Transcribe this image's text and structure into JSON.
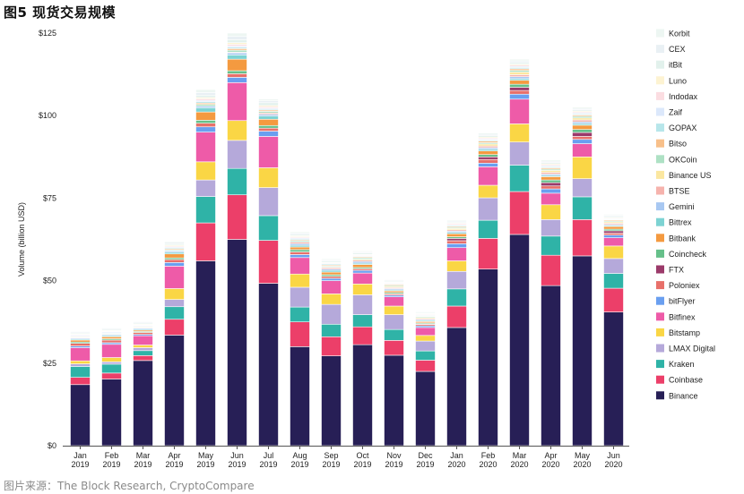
{
  "figure": {
    "title": "图5 现货交易规模",
    "source": "图片来源：The Block Research, CryptoCompare"
  },
  "chart_data": {
    "type": "bar",
    "stacked": true,
    "ylabel": "Volume (billion USD)",
    "xlabel": "",
    "ylim": [
      0,
      125
    ],
    "yticks": [
      "$0",
      "$25",
      "$50",
      "$75",
      "$100",
      "$125"
    ],
    "grid": false,
    "legend_position": "right",
    "categories": [
      [
        "Jan",
        "2019"
      ],
      [
        "Feb",
        "2019"
      ],
      [
        "Mar",
        "2019"
      ],
      [
        "Apr",
        "2019"
      ],
      [
        "May",
        "2019"
      ],
      [
        "Jun",
        "2019"
      ],
      [
        "Jul",
        "2019"
      ],
      [
        "Aug",
        "2019"
      ],
      [
        "Sep",
        "2019"
      ],
      [
        "Oct",
        "2019"
      ],
      [
        "Nov",
        "2019"
      ],
      [
        "Dec",
        "2019"
      ],
      [
        "Jan",
        "2020"
      ],
      [
        "Feb",
        "2020"
      ],
      [
        "Mar",
        "2020"
      ],
      [
        "Apr",
        "2020"
      ],
      [
        "May",
        "2020"
      ],
      [
        "Jun",
        "2020"
      ]
    ],
    "series": [
      {
        "name": "Binance",
        "color": "#271f56",
        "values": [
          18.5,
          20.2,
          25.8,
          33.5,
          56.0,
          62.5,
          49.2,
          30.0,
          27.2,
          30.6,
          27.4,
          22.5,
          35.8,
          53.5,
          64.0,
          48.5,
          57.5,
          40.5
        ]
      },
      {
        "name": "Coinbase",
        "color": "#ec3f69",
        "values": [
          2.2,
          1.8,
          1.5,
          4.8,
          11.5,
          13.5,
          13.0,
          7.5,
          5.8,
          5.4,
          4.5,
          3.4,
          6.5,
          9.3,
          13.0,
          9.2,
          11.0,
          7.2
        ]
      },
      {
        "name": "Kraken",
        "color": "#2fb3a7",
        "values": [
          3.3,
          2.7,
          1.5,
          3.8,
          8.0,
          8.0,
          7.5,
          4.5,
          3.8,
          3.7,
          3.3,
          2.8,
          5.2,
          5.5,
          8.0,
          5.8,
          6.9,
          4.5
        ]
      },
      {
        "name": "LMAX Digital",
        "color": "#b5a9da",
        "values": [
          0.8,
          0.7,
          0.9,
          2.2,
          5.0,
          8.5,
          8.5,
          6.0,
          6.0,
          6.0,
          4.5,
          3.0,
          5.3,
          6.8,
          7.0,
          5.0,
          5.5,
          4.5
        ]
      },
      {
        "name": "Bitstamp",
        "color": "#fad645",
        "values": [
          0.9,
          1.3,
          0.8,
          3.3,
          5.5,
          6.0,
          6.0,
          4.0,
          3.2,
          3.3,
          2.6,
          1.7,
          3.2,
          3.8,
          5.5,
          4.5,
          6.6,
          3.8
        ]
      },
      {
        "name": "Bitfinex",
        "color": "#ee5ba8",
        "values": [
          4.0,
          4.0,
          2.8,
          6.8,
          9.0,
          11.5,
          9.5,
          5.0,
          4.0,
          3.3,
          2.8,
          2.4,
          4.0,
          5.6,
          7.5,
          3.5,
          4.0,
          2.5
        ]
      },
      {
        "name": "bitFlyer",
        "color": "#6a9ff0",
        "values": [
          0.5,
          0.5,
          0.4,
          1.1,
          1.6,
          1.6,
          1.6,
          0.9,
          0.7,
          0.8,
          0.5,
          0.5,
          1.2,
          1.1,
          1.5,
          1.3,
          1.3,
          0.8
        ]
      },
      {
        "name": "Poloniex",
        "color": "#e8706a",
        "values": [
          0.8,
          0.8,
          0.6,
          0.9,
          1.1,
          1.1,
          0.9,
          0.8,
          0.6,
          0.5,
          0.4,
          0.4,
          0.9,
          1.1,
          1.1,
          0.9,
          0.9,
          0.6
        ]
      },
      {
        "name": "FTX",
        "color": "#9b3a6a",
        "values": [
          0,
          0,
          0,
          0,
          0,
          0,
          0,
          0,
          0,
          0,
          0,
          0.2,
          0.7,
          0.8,
          1.0,
          1.0,
          1.2,
          0.7
        ]
      },
      {
        "name": "Coincheck",
        "color": "#66c08a",
        "values": [
          0.4,
          0.4,
          0.3,
          0.5,
          0.9,
          0.9,
          0.8,
          0.7,
          0.5,
          0.4,
          0.4,
          0.3,
          0.5,
          0.7,
          0.9,
          0.8,
          0.9,
          0.5
        ]
      },
      {
        "name": "Bitbank",
        "color": "#f49a40",
        "values": [
          0.6,
          0.6,
          0.4,
          1.2,
          2.5,
          3.5,
          1.9,
          0.8,
          0.8,
          0.9,
          0.5,
          0.4,
          0.9,
          1.1,
          1.2,
          1.0,
          1.3,
          0.8
        ]
      },
      {
        "name": "Bittrex",
        "color": "#7dd3d3",
        "values": [
          0.3,
          0.3,
          0.3,
          0.5,
          1.3,
          1.3,
          1.0,
          0.5,
          0.5,
          0.4,
          0.3,
          0.3,
          0.4,
          0.5,
          0.5,
          0.4,
          0.5,
          0.3
        ]
      },
      {
        "name": "Gemini",
        "color": "#a8c8f2",
        "values": [
          0.3,
          0.3,
          0.3,
          0.4,
          0.5,
          0.6,
          0.5,
          0.5,
          0.4,
          0.5,
          0.4,
          0.3,
          0.4,
          0.5,
          0.6,
          0.4,
          0.5,
          0.3
        ]
      },
      {
        "name": "BTSE",
        "color": "#f6b3ad",
        "values": [
          0,
          0,
          0,
          0,
          0,
          0.2,
          0.4,
          0.5,
          0.4,
          0.4,
          0.3,
          0.3,
          0.4,
          0.5,
          0.6,
          0.5,
          0.6,
          0.4
        ]
      },
      {
        "name": "Binance US",
        "color": "#fbe7a0",
        "values": [
          0,
          0,
          0,
          0,
          0,
          0,
          0,
          0,
          0.2,
          0.3,
          0.3,
          0.3,
          0.4,
          0.6,
          0.8,
          0.6,
          0.6,
          0.4
        ]
      },
      {
        "name": "OKCoin",
        "color": "#aee1c4",
        "values": [
          0.2,
          0.2,
          0.2,
          0.3,
          0.5,
          0.6,
          0.5,
          0.4,
          0.3,
          0.4,
          0.3,
          0.3,
          0.3,
          0.4,
          0.5,
          0.4,
          0.5,
          0.3
        ]
      },
      {
        "name": "Bitso",
        "color": "#f8c08a",
        "values": [
          0.2,
          0.2,
          0.2,
          0.3,
          0.4,
          0.5,
          0.4,
          0.3,
          0.3,
          0.3,
          0.3,
          0.2,
          0.3,
          0.5,
          0.5,
          0.4,
          0.4,
          0.3
        ]
      },
      {
        "name": "GOPAX",
        "color": "#b7e6ea",
        "values": [
          0.2,
          0.2,
          0.2,
          0.3,
          0.4,
          0.4,
          0.3,
          0.3,
          0.3,
          0.2,
          0.2,
          0.2,
          0.3,
          0.3,
          0.4,
          0.3,
          0.3,
          0.2
        ]
      },
      {
        "name": "Zaif",
        "color": "#dce8fb",
        "values": [
          0.3,
          0.3,
          0.2,
          0.3,
          0.4,
          0.4,
          0.3,
          0.3,
          0.2,
          0.2,
          0.2,
          0.2,
          0.2,
          0.3,
          0.3,
          0.3,
          0.3,
          0.2
        ]
      },
      {
        "name": "Indodax",
        "color": "#fbdde1",
        "values": [
          0.2,
          0.2,
          0.2,
          0.3,
          0.5,
          0.5,
          0.4,
          0.3,
          0.2,
          0.2,
          0.2,
          0.2,
          0.3,
          0.3,
          0.4,
          0.3,
          0.3,
          0.2
        ]
      },
      {
        "name": "Luno",
        "color": "#fdf3d2",
        "values": [
          0.2,
          0.2,
          0.2,
          0.3,
          0.4,
          0.5,
          0.4,
          0.3,
          0.2,
          0.2,
          0.2,
          0.2,
          0.2,
          0.3,
          0.3,
          0.3,
          0.3,
          0.2
        ]
      },
      {
        "name": "itBit",
        "color": "#e2f1ec",
        "values": [
          0.3,
          0.3,
          0.3,
          0.4,
          0.7,
          0.9,
          0.8,
          0.4,
          0.4,
          0.4,
          0.3,
          0.3,
          0.3,
          0.4,
          0.5,
          0.4,
          0.4,
          0.3
        ]
      },
      {
        "name": "CEX",
        "color": "#e9f0f4",
        "values": [
          0.3,
          0.3,
          0.3,
          0.4,
          0.8,
          1.0,
          0.6,
          0.4,
          0.3,
          0.3,
          0.3,
          0.2,
          0.3,
          0.4,
          0.5,
          0.4,
          0.4,
          0.3
        ]
      },
      {
        "name": "Korbit",
        "color": "#edf6f2",
        "values": [
          0.2,
          0.2,
          0.2,
          0.3,
          0.9,
          1.0,
          0.5,
          0.4,
          0.3,
          0.3,
          0.2,
          0.2,
          0.3,
          0.4,
          0.5,
          0.4,
          0.4,
          0.3
        ]
      }
    ]
  }
}
